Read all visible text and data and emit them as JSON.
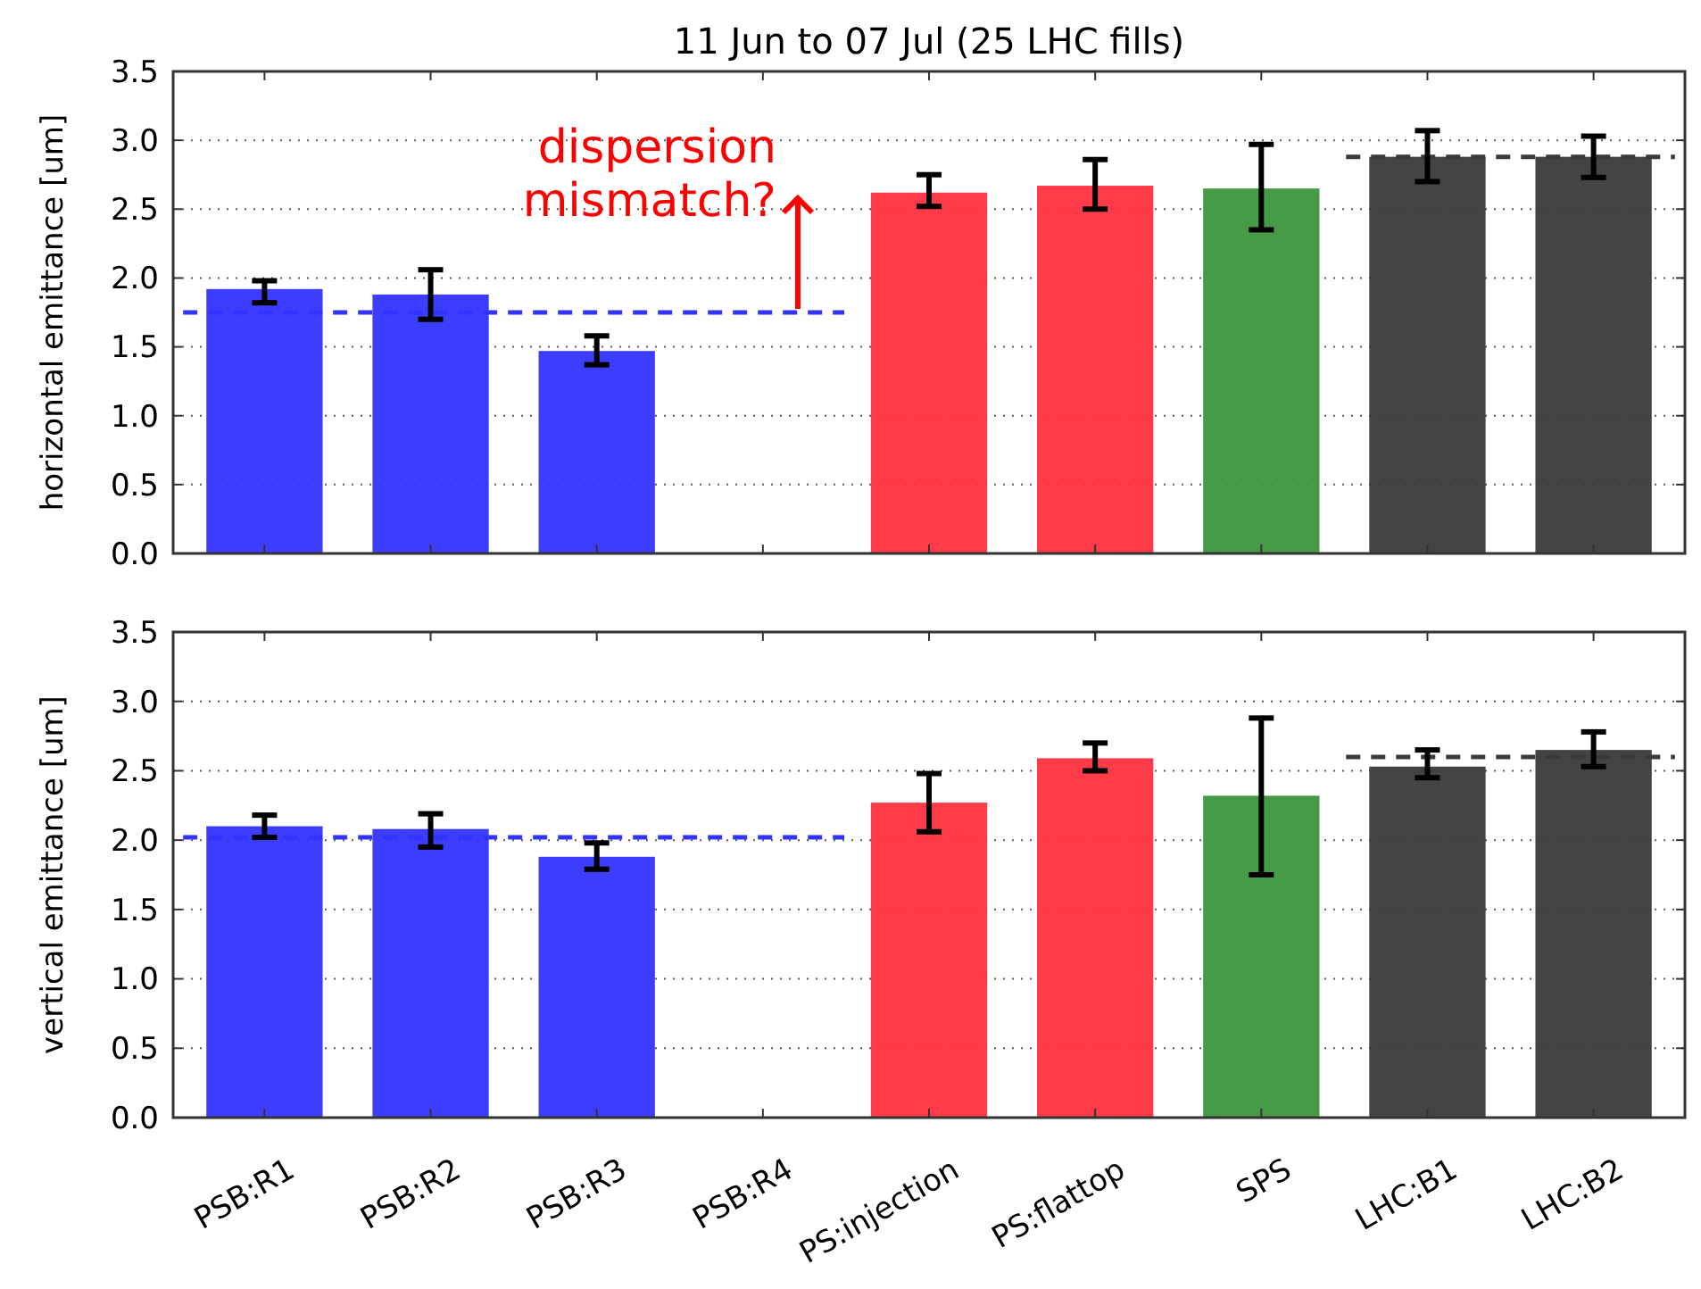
{
  "chart_data": [
    {
      "type": "bar",
      "title": "11 Jun to 07 Jul (25 LHC fills)",
      "ylabel": "horizontal emittance [um]",
      "categories": [
        "PSB:R1",
        "PSB:R2",
        "PSB:R3",
        "PSB:R4",
        "PS:injection",
        "PS:flattop",
        "SPS",
        "LHC:B1",
        "LHC:B2"
      ],
      "values": [
        1.92,
        1.88,
        1.47,
        null,
        2.62,
        2.67,
        2.65,
        2.88,
        2.88
      ],
      "colors": [
        "#3333ff",
        "#3333ff",
        "#3333ff",
        null,
        "#ff3040",
        "#ff3040",
        "#3d963d",
        "#3a3a3a",
        "#3a3a3a"
      ],
      "errors": [
        [
          1.82,
          1.98
        ],
        [
          1.7,
          2.06
        ],
        [
          1.37,
          1.58
        ],
        null,
        [
          2.52,
          2.75
        ],
        [
          2.5,
          2.86
        ],
        [
          2.35,
          2.97
        ],
        [
          2.7,
          3.07
        ],
        [
          2.73,
          3.03
        ]
      ],
      "ylim": [
        0,
        3.5
      ],
      "yticks": [
        {
          "value": 0,
          "label": "0.0"
        },
        0.5,
        {
          "value": 1,
          "label": "1.0"
        },
        1.5,
        {
          "value": 2,
          "label": "2.0"
        },
        2.5,
        {
          "value": 3,
          "label": "3.0"
        },
        3.5
      ],
      "grid": "y",
      "tick_labels": "y",
      "ref_lines": [
        {
          "axis": "y",
          "value": 1.75,
          "color": "#3333ff",
          "line_style": "dashed"
        },
        {
          "axis": "y",
          "value": 2.88,
          "color": "#3a3a3a",
          "line_style": "dashed"
        }
      ],
      "annotations": [
        {
          "text": "dispersion mismatch?",
          "x": "PSB:R4",
          "y": 1.75
        }
      ]
    },
    {
      "type": "bar",
      "ylabel": "vertical emittance [um]",
      "categories": [
        "PSB:R1",
        "PSB:R2",
        "PSB:R3",
        "PSB:R4",
        "PS:injection",
        "PS:flattop",
        "SPS",
        "LHC:B1",
        "LHC:B2"
      ],
      "values": [
        2.1,
        2.08,
        1.88,
        null,
        2.27,
        2.59,
        2.32,
        2.53,
        2.65
      ],
      "colors": [
        "#3333ff",
        "#3333ff",
        "#3333ff",
        null,
        "#ff3040",
        "#ff3040",
        "#3d963d",
        "#3a3a3a",
        "#3a3a3a"
      ],
      "errors": [
        [
          2.02,
          2.18
        ],
        [
          1.95,
          2.19
        ],
        [
          1.79,
          1.98
        ],
        null,
        [
          2.06,
          2.48
        ],
        [
          2.5,
          2.7
        ],
        [
          1.75,
          2.88
        ],
        [
          2.45,
          2.65
        ],
        [
          2.53,
          2.78
        ]
      ],
      "ylim": [
        0,
        3.5
      ],
      "yticks": [
        {
          "value": 0,
          "label": "0.0"
        },
        0.5,
        {
          "value": 1,
          "label": "1.0"
        },
        1.5,
        {
          "value": 2,
          "label": "2.0"
        },
        2.5,
        {
          "value": 3,
          "label": "3.0"
        },
        3.5
      ],
      "grid": "y",
      "ref_lines": [
        {
          "axis": "y",
          "value": 2.02,
          "color": "#3333ff",
          "line_style": "dashed"
        },
        {
          "axis": "y",
          "value": 2.6,
          "color": "#3a3a3a",
          "line_style": "dashed"
        }
      ]
    }
  ]
}
